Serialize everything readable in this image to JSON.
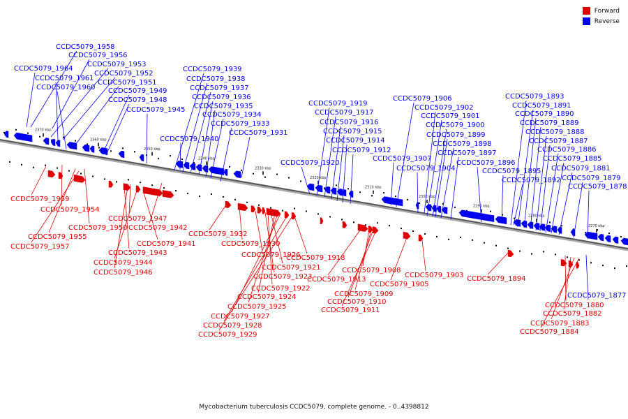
{
  "legend": {
    "forward": {
      "label": "Forward",
      "color": "#dd0000"
    },
    "reverse": {
      "label": "Reverse",
      "color": "#0000ee"
    }
  },
  "caption": "Mycobacterium tuberculosis CCDC5079, complete genome. - 0..4398812",
  "ticks": [
    "2370 kbp",
    "2360 kbp",
    "2350 kbp",
    "2340 kbp",
    "2330 kbp",
    "2320 kbp",
    "2310 kbp",
    "2300 kbp",
    "2290 kbp",
    "2280 kbp",
    "2270 kbp"
  ],
  "reverse_labels": [
    "CCDC5079_1958",
    "CCDC5079_1956",
    "CCDC5079_1953",
    "CCDC5079_1964",
    "CCDC5079_1952",
    "CCDC5079_1961",
    "CCDC5079_1951",
    "CCDC5079_1960",
    "CCDC5079_1949",
    "CCDC5079_1948",
    "CCDC5079_1945",
    "CCDC5079_1939",
    "CCDC5079_1938",
    "CCDC5079_1937",
    "CCDC5079_1936",
    "CCDC5079_1935",
    "CCDC5079_1934",
    "CCDC5079_1933",
    "CCDC5079_1931",
    "CCDC5079_1940",
    "CCDC5079_1919",
    "CCDC5079_1917",
    "CCDC5079_1916",
    "CCDC5079_1915",
    "CCDC5079_1914",
    "CCDC5079_1912",
    "CCDC5079_1920",
    "CCDC5079_1906",
    "CCDC5079_1902",
    "CCDC5079_1901",
    "CCDC5079_1900",
    "CCDC5079_1899",
    "CCDC5079_1898",
    "CCDC5079_1897",
    "CCDC5079_1907",
    "CCDC5079_1896",
    "CCDC5079_1904",
    "CCDC5079_1893",
    "CCDC5079_1891",
    "CCDC5079_1890",
    "CCDC5079_1889",
    "CCDC5079_1888",
    "CCDC5079_1887",
    "CCDC5079_1886",
    "CCDC5079_1885",
    "CCDC5079_1895",
    "CCDC5079_1881",
    "CCDC5079_1892",
    "CCDC5079_1879",
    "CCDC5079_1878",
    "CCDC5079_1877"
  ],
  "forward_labels": [
    "CCDC5079_1959",
    "CCDC5079_1954",
    "CCDC5079_1947",
    "CCDC5079_1950",
    "CCDC5079_1942",
    "CCDC5079_1955",
    "CCDC5079_1957",
    "CCDC5079_1941",
    "CCDC5079_1943",
    "CCDC5079_1944",
    "CCDC5079_1946",
    "CCDC5079_1932",
    "CCDC5079_1930",
    "CCDC5079_1926",
    "CCDC5079_1918",
    "CCDC5079_1921",
    "CCDC5079_1923",
    "CCDC5079_1922",
    "CCDC5079_1924",
    "CCDC5079_1925",
    "CCDC5079_1927",
    "CCDC5079_1928",
    "CCDC5079_1929",
    "CCDC5079_1908",
    "CCDC5079_1913",
    "CCDC5079_1909",
    "CCDC5079_1910",
    "CCDC5079_1911",
    "CCDC5079_1903",
    "CCDC5079_1905",
    "CCDC5079_1894",
    "CCDC5079_1880",
    "CCDC5079_1882",
    "CCDC5079_1883",
    "CCDC5079_1884"
  ]
}
